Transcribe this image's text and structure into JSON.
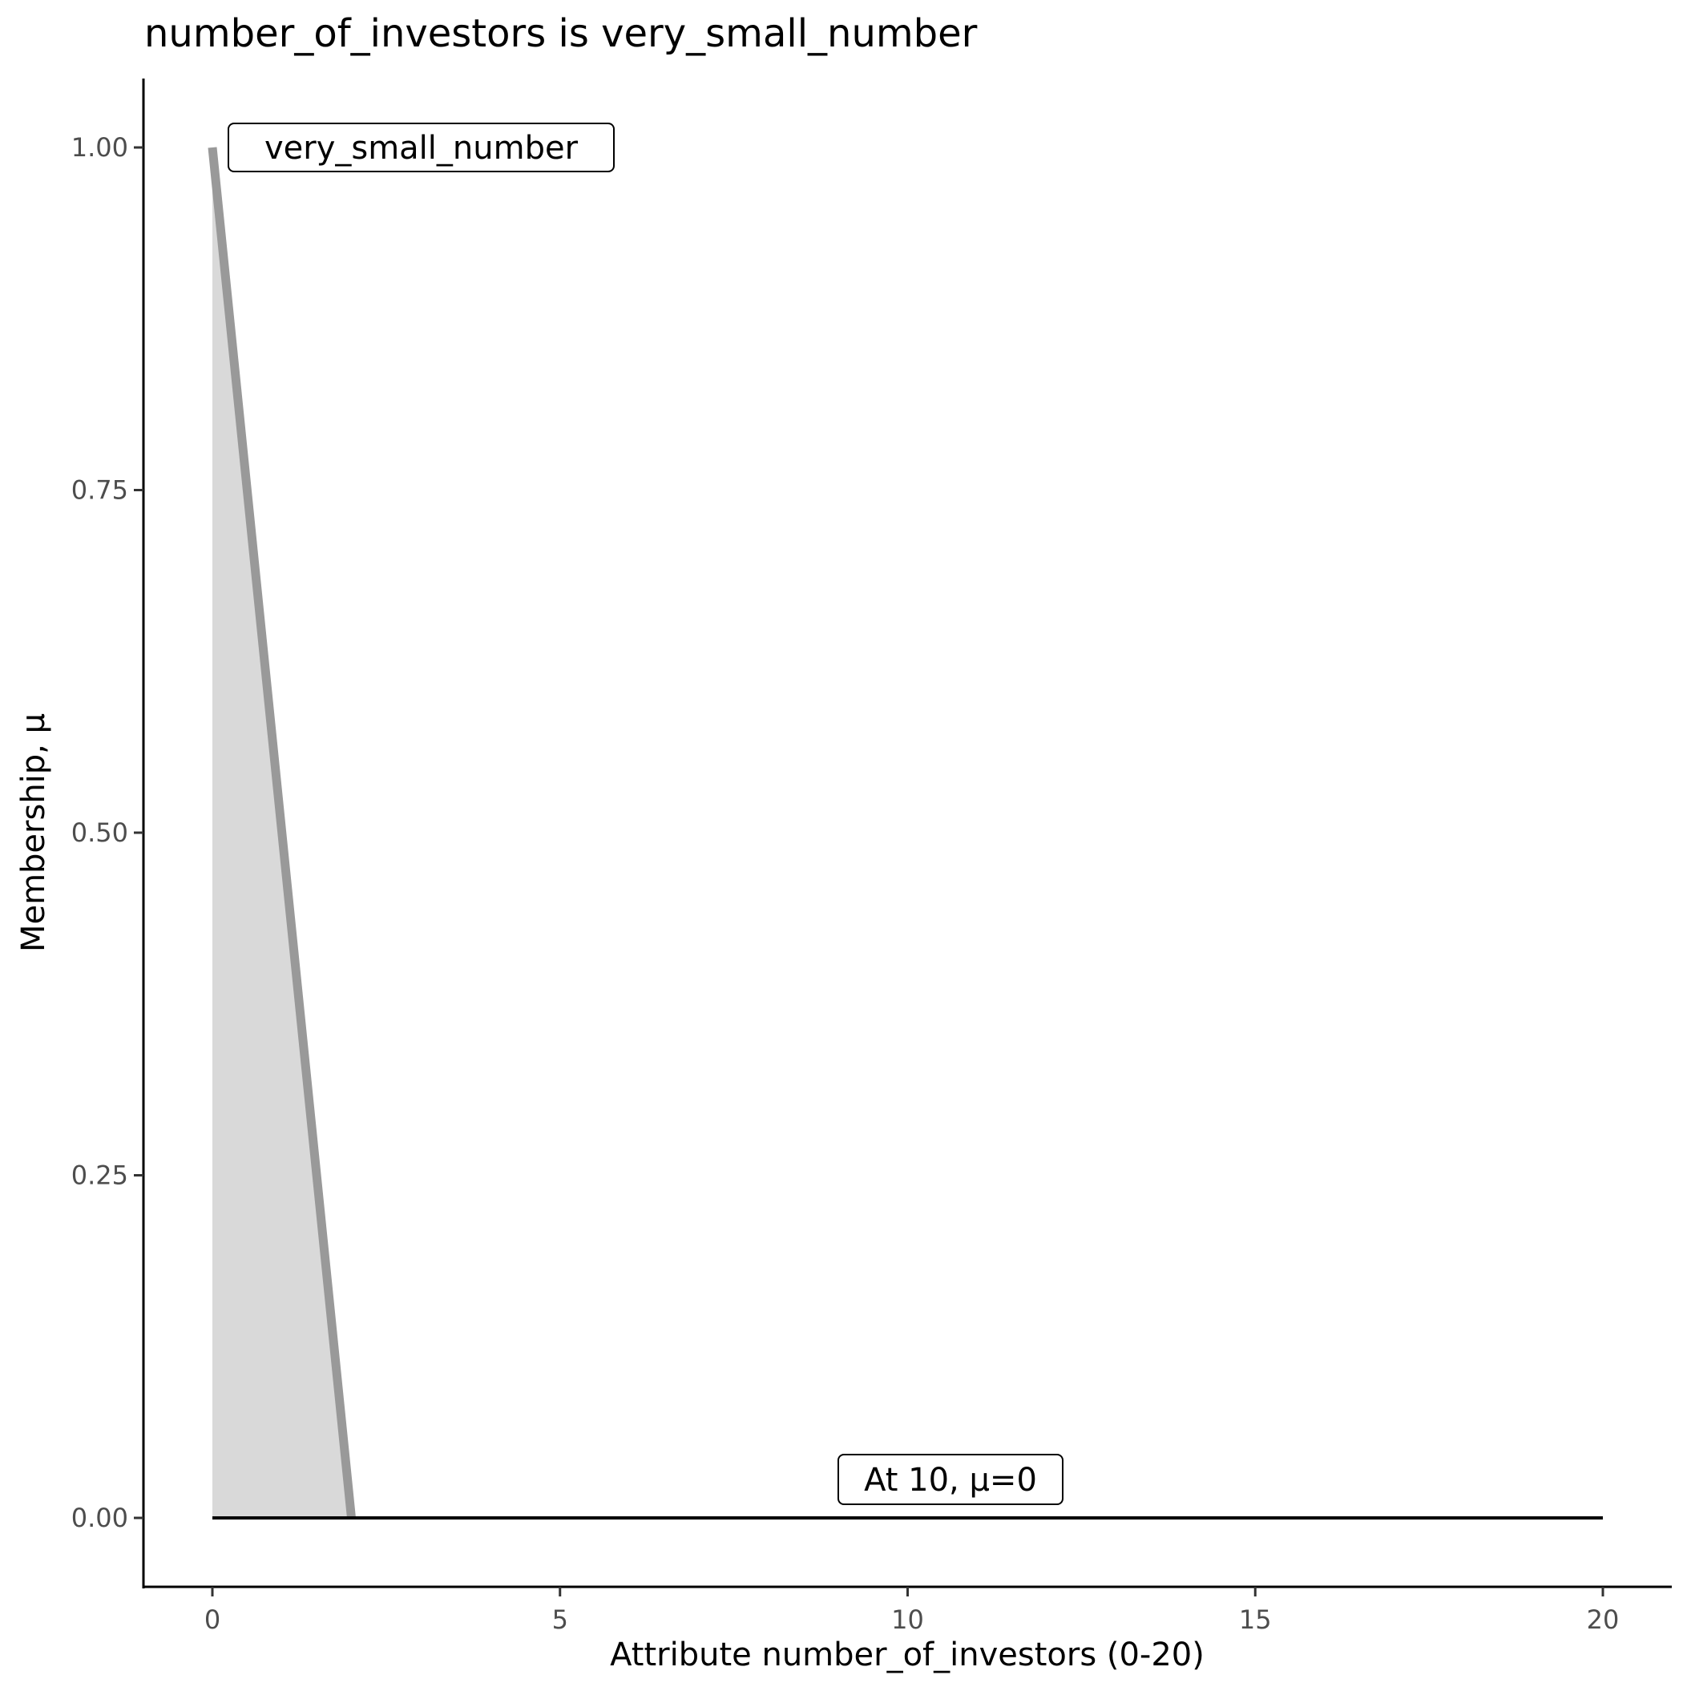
{
  "chart_data": {
    "type": "area",
    "title": "number_of_investors is very_small_number",
    "xlabel": "Attribute number_of_investors (0-20)",
    "ylabel": "Membership, μ",
    "xlim": [
      -1,
      21
    ],
    "ylim": [
      -0.05,
      1.05
    ],
    "xticks": [
      0,
      5,
      10,
      15,
      20
    ],
    "xtick_labels": [
      "0",
      "5",
      "10",
      "15",
      "20"
    ],
    "yticks": [
      0,
      0.25,
      0.5,
      0.75,
      1
    ],
    "ytick_labels": [
      "0.00",
      "0.25",
      "0.50",
      "0.75",
      "1.00"
    ],
    "grid": false,
    "series": [
      {
        "name": "very_small_number",
        "x": [
          0,
          2
        ],
        "y": [
          1,
          0
        ],
        "line_color": "#999999",
        "fill_color": "#d9d9d9"
      },
      {
        "x": [
          0,
          20
        ],
        "y": [
          0,
          0
        ],
        "line_color": "#000000"
      }
    ],
    "annotations": [
      {
        "text": "very_small_number",
        "x": 0.2,
        "y": 1
      },
      {
        "text": "At 10, μ=0",
        "x": 10.6,
        "y": 0.03
      }
    ]
  }
}
